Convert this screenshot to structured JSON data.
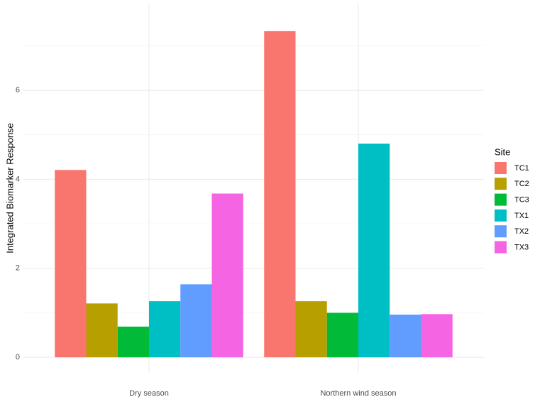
{
  "chart_data": {
    "type": "bar",
    "y_label": "Integrated Biomarker Response",
    "categories": [
      "Dry season",
      "Northern wind season"
    ],
    "legend_title": "Site",
    "series": [
      {
        "name": "TC1",
        "color": "#F8766D",
        "values": [
          4.21,
          7.33
        ]
      },
      {
        "name": "TC2",
        "color": "#B79F00",
        "values": [
          1.21,
          1.26
        ]
      },
      {
        "name": "TC3",
        "color": "#00BA38",
        "values": [
          0.69,
          1.0
        ]
      },
      {
        "name": "TX1",
        "color": "#00BFC4",
        "values": [
          1.26,
          4.8
        ]
      },
      {
        "name": "TX2",
        "color": "#619CFF",
        "values": [
          1.64,
          0.96
        ]
      },
      {
        "name": "TX3",
        "color": "#F564E3",
        "values": [
          3.68,
          0.97
        ]
      }
    ],
    "ylim": [
      -0.35,
      7.95
    ],
    "yticks": [
      0,
      2,
      4,
      6
    ],
    "yminor_ticks": [
      1,
      3,
      5,
      7
    ],
    "grid": true,
    "legend_position": "right"
  }
}
